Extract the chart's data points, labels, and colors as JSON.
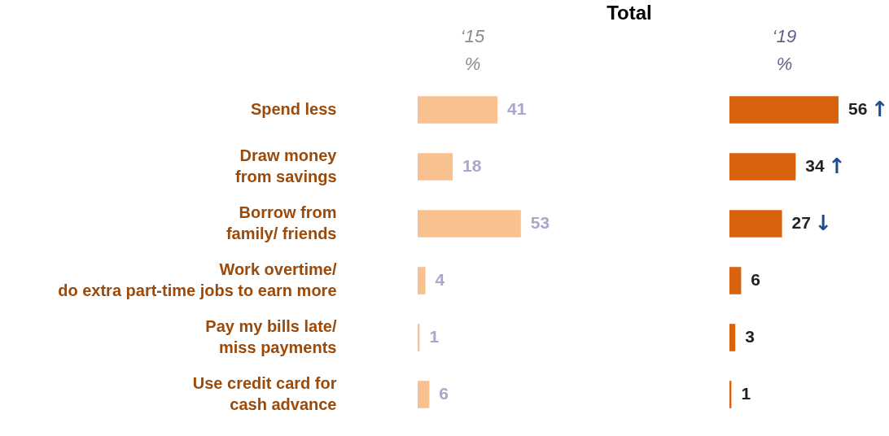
{
  "chart_data": [
    {
      "type": "bar",
      "orientation": "horizontal",
      "xlabel": "%",
      "tick_labels": "y",
      "data_labels": true,
      "categories": [
        "Spend less",
        "Draw money\nfrom savings",
        "Borrow from\nfamily/ friends",
        "Work overtime/\ndo extra part-time jobs to earn more",
        "Pay my bills late/\nmiss payments",
        "Use credit card for\ncash advance"
      ],
      "series": [
        {
          "name": "‘15",
          "color": "#f9c18f",
          "values": [
            41,
            18,
            53,
            4,
            1,
            6
          ]
        }
      ]
    },
    {
      "type": "bar",
      "orientation": "horizontal",
      "title": "Total",
      "xlabel": "%",
      "tick_labels": false,
      "data_labels": true,
      "categories": [
        "Spend less",
        "Draw money\nfrom savings",
        "Borrow from\nfamily/ friends",
        "Work overtime/\ndo extra part-time jobs to earn more",
        "Pay my bills late/\nmiss payments",
        "Use credit card for\ncash advance"
      ],
      "series": [
        {
          "name": "‘19",
          "color": "#d9620e",
          "values": [
            56,
            34,
            27,
            6,
            3,
            1
          ]
        }
      ],
      "annotations": [
        {
          "text": "↑",
          "x": 56,
          "y": "Spend less"
        },
        {
          "text": "↑",
          "x": 34,
          "y": "Draw money\nfrom savings"
        },
        {
          "text": "↓",
          "x": 27,
          "y": "Borrow from\nfamily/ friends"
        }
      ]
    }
  ]
}
